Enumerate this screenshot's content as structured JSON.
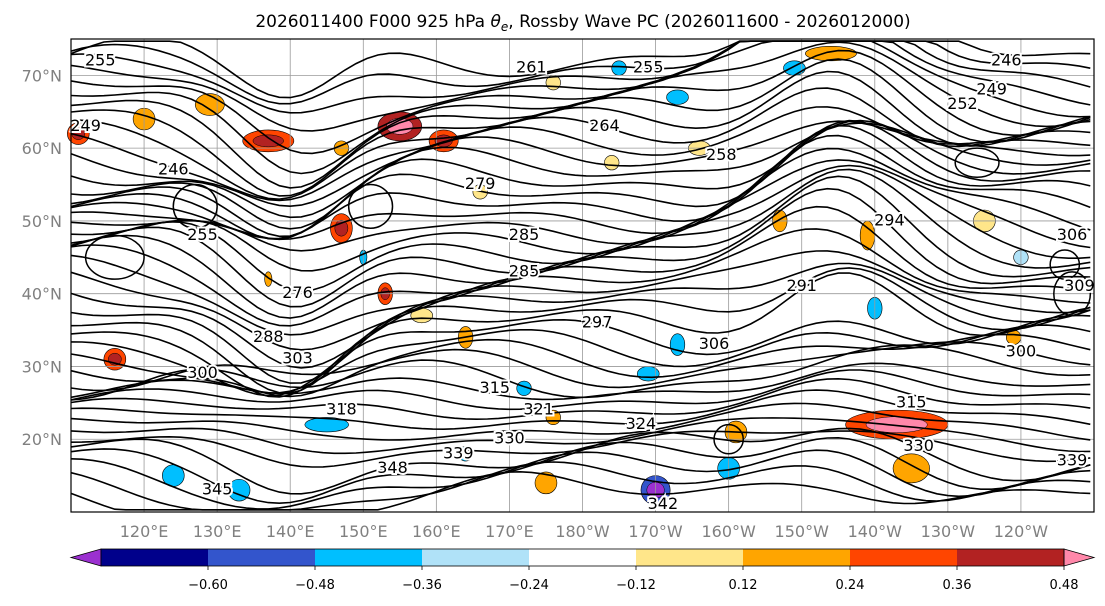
{
  "chart_data": {
    "type": "contour-map",
    "title_prefix": "2026011400 F000 925 hPa ",
    "title_symbol": "θ",
    "title_symbol_sub": "e",
    "title_suffix": ", Rossby Wave PC (2026011600 - 2026012000)",
    "lat_ticks": [
      {
        "label": "70°N",
        "lat": 70
      },
      {
        "label": "60°N",
        "lat": 60
      },
      {
        "label": "50°N",
        "lat": 50
      },
      {
        "label": "40°N",
        "lat": 40
      },
      {
        "label": "30°N",
        "lat": 30
      },
      {
        "label": "20°N",
        "lat": 20
      }
    ],
    "lon_ticks": [
      {
        "label": "120°E",
        "lon": 120
      },
      {
        "label": "130°E",
        "lon": 130
      },
      {
        "label": "140°E",
        "lon": 140
      },
      {
        "label": "150°E",
        "lon": 150
      },
      {
        "label": "160°E",
        "lon": 160
      },
      {
        "label": "170°E",
        "lon": 170
      },
      {
        "label": "180°W",
        "lon": 180
      },
      {
        "label": "170°W",
        "lon": 190
      },
      {
        "label": "160°W",
        "lon": 200
      },
      {
        "label": "150°W",
        "lon": 210
      },
      {
        "label": "140°W",
        "lon": 220
      },
      {
        "label": "130°W",
        "lon": 230
      },
      {
        "label": "120°W",
        "lon": 240
      }
    ],
    "lon_range": [
      110,
      250
    ],
    "lat_range": [
      10,
      75
    ],
    "grid": true,
    "contour_labels": [
      {
        "text": "255",
        "lon": 114,
        "lat": 72
      },
      {
        "text": "261",
        "lon": 173,
        "lat": 71
      },
      {
        "text": "255",
        "lon": 189,
        "lat": 71
      },
      {
        "text": "246",
        "lon": 238,
        "lat": 72
      },
      {
        "text": "249",
        "lon": 236,
        "lat": 68
      },
      {
        "text": "252",
        "lon": 232,
        "lat": 66
      },
      {
        "text": "249",
        "lon": 112,
        "lat": 63
      },
      {
        "text": "264",
        "lon": 183,
        "lat": 63
      },
      {
        "text": "258",
        "lon": 199,
        "lat": 59
      },
      {
        "text": "246",
        "lon": 124,
        "lat": 57
      },
      {
        "text": "255",
        "lon": 128,
        "lat": 48
      },
      {
        "text": "279",
        "lon": 166,
        "lat": 55
      },
      {
        "text": "285",
        "lon": 172,
        "lat": 48
      },
      {
        "text": "285",
        "lon": 172,
        "lat": 43
      },
      {
        "text": "291",
        "lon": 210,
        "lat": 41
      },
      {
        "text": "294",
        "lon": 222,
        "lat": 50
      },
      {
        "text": "276",
        "lon": 141,
        "lat": 40
      },
      {
        "text": "297",
        "lon": 182,
        "lat": 36
      },
      {
        "text": "288",
        "lon": 137,
        "lat": 34
      },
      {
        "text": "306",
        "lon": 198,
        "lat": 33
      },
      {
        "text": "303",
        "lon": 141,
        "lat": 31
      },
      {
        "text": "300",
        "lon": 128,
        "lat": 29
      },
      {
        "text": "315",
        "lon": 168,
        "lat": 27
      },
      {
        "text": "318",
        "lon": 147,
        "lat": 24
      },
      {
        "text": "321",
        "lon": 174,
        "lat": 24
      },
      {
        "text": "324",
        "lon": 188,
        "lat": 22
      },
      {
        "text": "330",
        "lon": 170,
        "lat": 20
      },
      {
        "text": "339",
        "lon": 163,
        "lat": 18
      },
      {
        "text": "348",
        "lon": 154,
        "lat": 16
      },
      {
        "text": "330",
        "lon": 226,
        "lat": 19
      },
      {
        "text": "339",
        "lon": 247,
        "lat": 17
      },
      {
        "text": "342",
        "lon": 191,
        "lat": 11
      },
      {
        "text": "345",
        "lon": 130,
        "lat": 13
      },
      {
        "text": "300",
        "lon": 240,
        "lat": 32
      },
      {
        "text": "309",
        "lon": 248,
        "lat": 41
      },
      {
        "text": "306",
        "lon": 247,
        "lat": 48
      },
      {
        "text": "315",
        "lon": 225,
        "lat": 25
      }
    ],
    "colorbar": {
      "colors": [
        "#9b30d0",
        "#00008b",
        "#3355cc",
        "#00bfff",
        "#b0e2f8",
        "#ffffff",
        "#ffe68a",
        "#ffa500",
        "#ff4500",
        "#b22222",
        "#ff88aa"
      ],
      "ticks": [
        -0.6,
        -0.48,
        -0.36,
        -0.24,
        -0.12,
        0.12,
        0.24,
        0.36,
        0.48,
        0.6
      ],
      "tick_labels": [
        "−0.60",
        "−0.48",
        "−0.36",
        "−0.24",
        "−0.12",
        "0.12",
        "0.24",
        "0.36",
        "0.48",
        "0.60"
      ],
      "extend": "both"
    },
    "shaded_anomalies": [
      {
        "lon": 111,
        "lat": 62,
        "w": 3,
        "h": 3,
        "v": 0.4
      },
      {
        "lon": 120,
        "lat": 64,
        "w": 3,
        "h": 3,
        "v": 0.3
      },
      {
        "lon": 129,
        "lat": 66,
        "w": 4,
        "h": 3,
        "v": 0.3
      },
      {
        "lon": 137,
        "lat": 61,
        "w": 7,
        "h": 3,
        "v": 0.4
      },
      {
        "lon": 155,
        "lat": 63,
        "w": 6,
        "h": 4,
        "v": 0.55
      },
      {
        "lon": 161,
        "lat": 61,
        "w": 4,
        "h": 3,
        "v": 0.4
      },
      {
        "lon": 147,
        "lat": 60,
        "w": 2,
        "h": 2,
        "v": 0.3
      },
      {
        "lon": 176,
        "lat": 69,
        "w": 2,
        "h": 2,
        "v": 0.2
      },
      {
        "lon": 185,
        "lat": 71,
        "w": 2,
        "h": 2,
        "v": -0.3
      },
      {
        "lon": 193,
        "lat": 67,
        "w": 3,
        "h": 2,
        "v": -0.3
      },
      {
        "lon": 209,
        "lat": 71,
        "w": 3,
        "h": 2,
        "v": -0.3
      },
      {
        "lon": 214,
        "lat": 73,
        "w": 7,
        "h": 2,
        "v": 0.3
      },
      {
        "lon": 196,
        "lat": 60,
        "w": 3,
        "h": 2,
        "v": 0.2
      },
      {
        "lon": 184,
        "lat": 58,
        "w": 2,
        "h": 2,
        "v": 0.2
      },
      {
        "lon": 166,
        "lat": 54,
        "w": 2,
        "h": 2,
        "v": 0.2
      },
      {
        "lon": 147,
        "lat": 49,
        "w": 3,
        "h": 4,
        "v": 0.4
      },
      {
        "lon": 150,
        "lat": 45,
        "w": 1,
        "h": 2,
        "v": -0.3
      },
      {
        "lon": 153,
        "lat": 40,
        "w": 2,
        "h": 3,
        "v": 0.4
      },
      {
        "lon": 116,
        "lat": 31,
        "w": 3,
        "h": 3,
        "v": 0.4
      },
      {
        "lon": 164,
        "lat": 34,
        "w": 2,
        "h": 3,
        "v": 0.25
      },
      {
        "lon": 193,
        "lat": 33,
        "w": 2,
        "h": 3,
        "v": -0.3
      },
      {
        "lon": 189,
        "lat": 29,
        "w": 3,
        "h": 2,
        "v": -0.3
      },
      {
        "lon": 201,
        "lat": 21,
        "w": 3,
        "h": 3,
        "v": 0.3
      },
      {
        "lon": 223,
        "lat": 22,
        "w": 14,
        "h": 4,
        "v": 0.45
      },
      {
        "lon": 225,
        "lat": 16,
        "w": 5,
        "h": 4,
        "v": 0.35
      },
      {
        "lon": 190,
        "lat": 13,
        "w": 4,
        "h": 4,
        "v": -0.45
      },
      {
        "lon": 176,
        "lat": 23,
        "w": 2,
        "h": 2,
        "v": 0.3
      },
      {
        "lon": 164,
        "lat": 18,
        "w": 2,
        "h": 2,
        "v": -0.3
      },
      {
        "lon": 172,
        "lat": 27,
        "w": 2,
        "h": 2,
        "v": -0.3
      },
      {
        "lon": 124,
        "lat": 15,
        "w": 3,
        "h": 3,
        "v": -0.3
      },
      {
        "lon": 133,
        "lat": 13,
        "w": 3,
        "h": 3,
        "v": -0.35
      },
      {
        "lon": 145,
        "lat": 22,
        "w": 6,
        "h": 2,
        "v": -0.3
      },
      {
        "lon": 200,
        "lat": 16,
        "w": 3,
        "h": 3,
        "v": -0.3
      },
      {
        "lon": 220,
        "lat": 38,
        "w": 2,
        "h": 3,
        "v": -0.3
      },
      {
        "lon": 219,
        "lat": 48,
        "w": 2,
        "h": 4,
        "v": 0.3
      },
      {
        "lon": 207,
        "lat": 50,
        "w": 2,
        "h": 3,
        "v": 0.3
      },
      {
        "lon": 235,
        "lat": 50,
        "w": 3,
        "h": 3,
        "v": 0.2
      },
      {
        "lon": 240,
        "lat": 45,
        "w": 2,
        "h": 2,
        "v": -0.2
      },
      {
        "lon": 239,
        "lat": 34,
        "w": 2,
        "h": 2,
        "v": 0.3
      },
      {
        "lon": 137,
        "lat": 42,
        "w": 1,
        "h": 2,
        "v": 0.3
      },
      {
        "lon": 158,
        "lat": 37,
        "w": 3,
        "h": 2,
        "v": 0.2
      },
      {
        "lon": 175,
        "lat": 14,
        "w": 3,
        "h": 3,
        "v": 0.35
      }
    ]
  }
}
